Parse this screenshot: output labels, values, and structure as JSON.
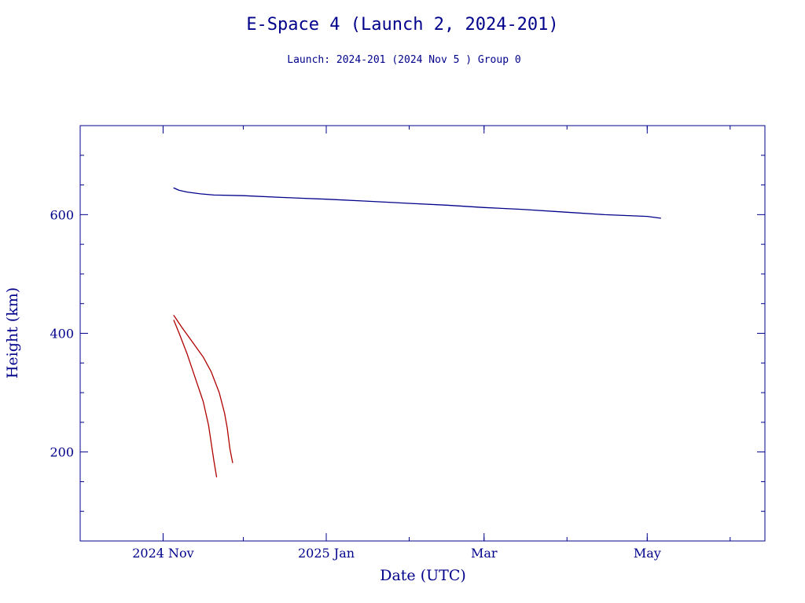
{
  "chart_data": {
    "type": "line",
    "title": "E-Space 4 (Launch 2, 2024-201)",
    "subtitle": "Launch: 2024-201  (2024 Nov  5 )  Group 0",
    "xlabel": "Date (UTC)",
    "ylabel": "Height (km)",
    "xlim": [
      "2024-10-01",
      "2025-06-14"
    ],
    "ylim": [
      50,
      750
    ],
    "x_ticks": [
      {
        "date": "2024-11-01",
        "label": "2024 Nov"
      },
      {
        "date": "2025-01-01",
        "label": "2025 Jan"
      },
      {
        "date": "2025-03-01",
        "label": "Mar"
      },
      {
        "date": "2025-05-01",
        "label": "May"
      }
    ],
    "y_ticks": [
      200,
      400,
      600
    ],
    "grid": false,
    "colors": {
      "axis": "#00008b",
      "text": "#00008b",
      "upper_series": "#00008b",
      "lower_series": "#b00000"
    },
    "series": [
      {
        "color": "#00008b",
        "points": [
          [
            "2024-11-05",
            645
          ],
          [
            "2024-11-07",
            641
          ],
          [
            "2024-11-10",
            638
          ],
          [
            "2024-11-15",
            635
          ],
          [
            "2024-11-20",
            633
          ],
          [
            "2024-12-01",
            632
          ],
          [
            "2024-12-15",
            629
          ],
          [
            "2025-01-01",
            626
          ],
          [
            "2025-01-15",
            623
          ],
          [
            "2025-02-01",
            619
          ],
          [
            "2025-02-15",
            616
          ],
          [
            "2025-03-01",
            612
          ],
          [
            "2025-03-15",
            609
          ],
          [
            "2025-04-01",
            604
          ],
          [
            "2025-04-15",
            600
          ],
          [
            "2025-05-01",
            597
          ],
          [
            "2025-05-06",
            594
          ]
        ]
      },
      {
        "color": "#b00000",
        "points": [
          [
            "2024-11-05",
            430
          ],
          [
            "2024-11-08",
            410
          ],
          [
            "2024-11-12",
            385
          ],
          [
            "2024-11-16",
            360
          ],
          [
            "2024-11-19",
            335
          ],
          [
            "2024-11-22",
            300
          ],
          [
            "2024-11-24",
            265
          ],
          [
            "2024-11-25",
            240
          ],
          [
            "2024-11-26",
            205
          ],
          [
            "2024-11-27",
            182
          ]
        ]
      },
      {
        "color": "#b00000",
        "points": [
          [
            "2024-11-05",
            422
          ],
          [
            "2024-11-07",
            400
          ],
          [
            "2024-11-10",
            365
          ],
          [
            "2024-11-13",
            325
          ],
          [
            "2024-11-16",
            285
          ],
          [
            "2024-11-18",
            245
          ],
          [
            "2024-11-19",
            215
          ],
          [
            "2024-11-20",
            185
          ],
          [
            "2024-11-21",
            158
          ]
        ]
      }
    ]
  }
}
